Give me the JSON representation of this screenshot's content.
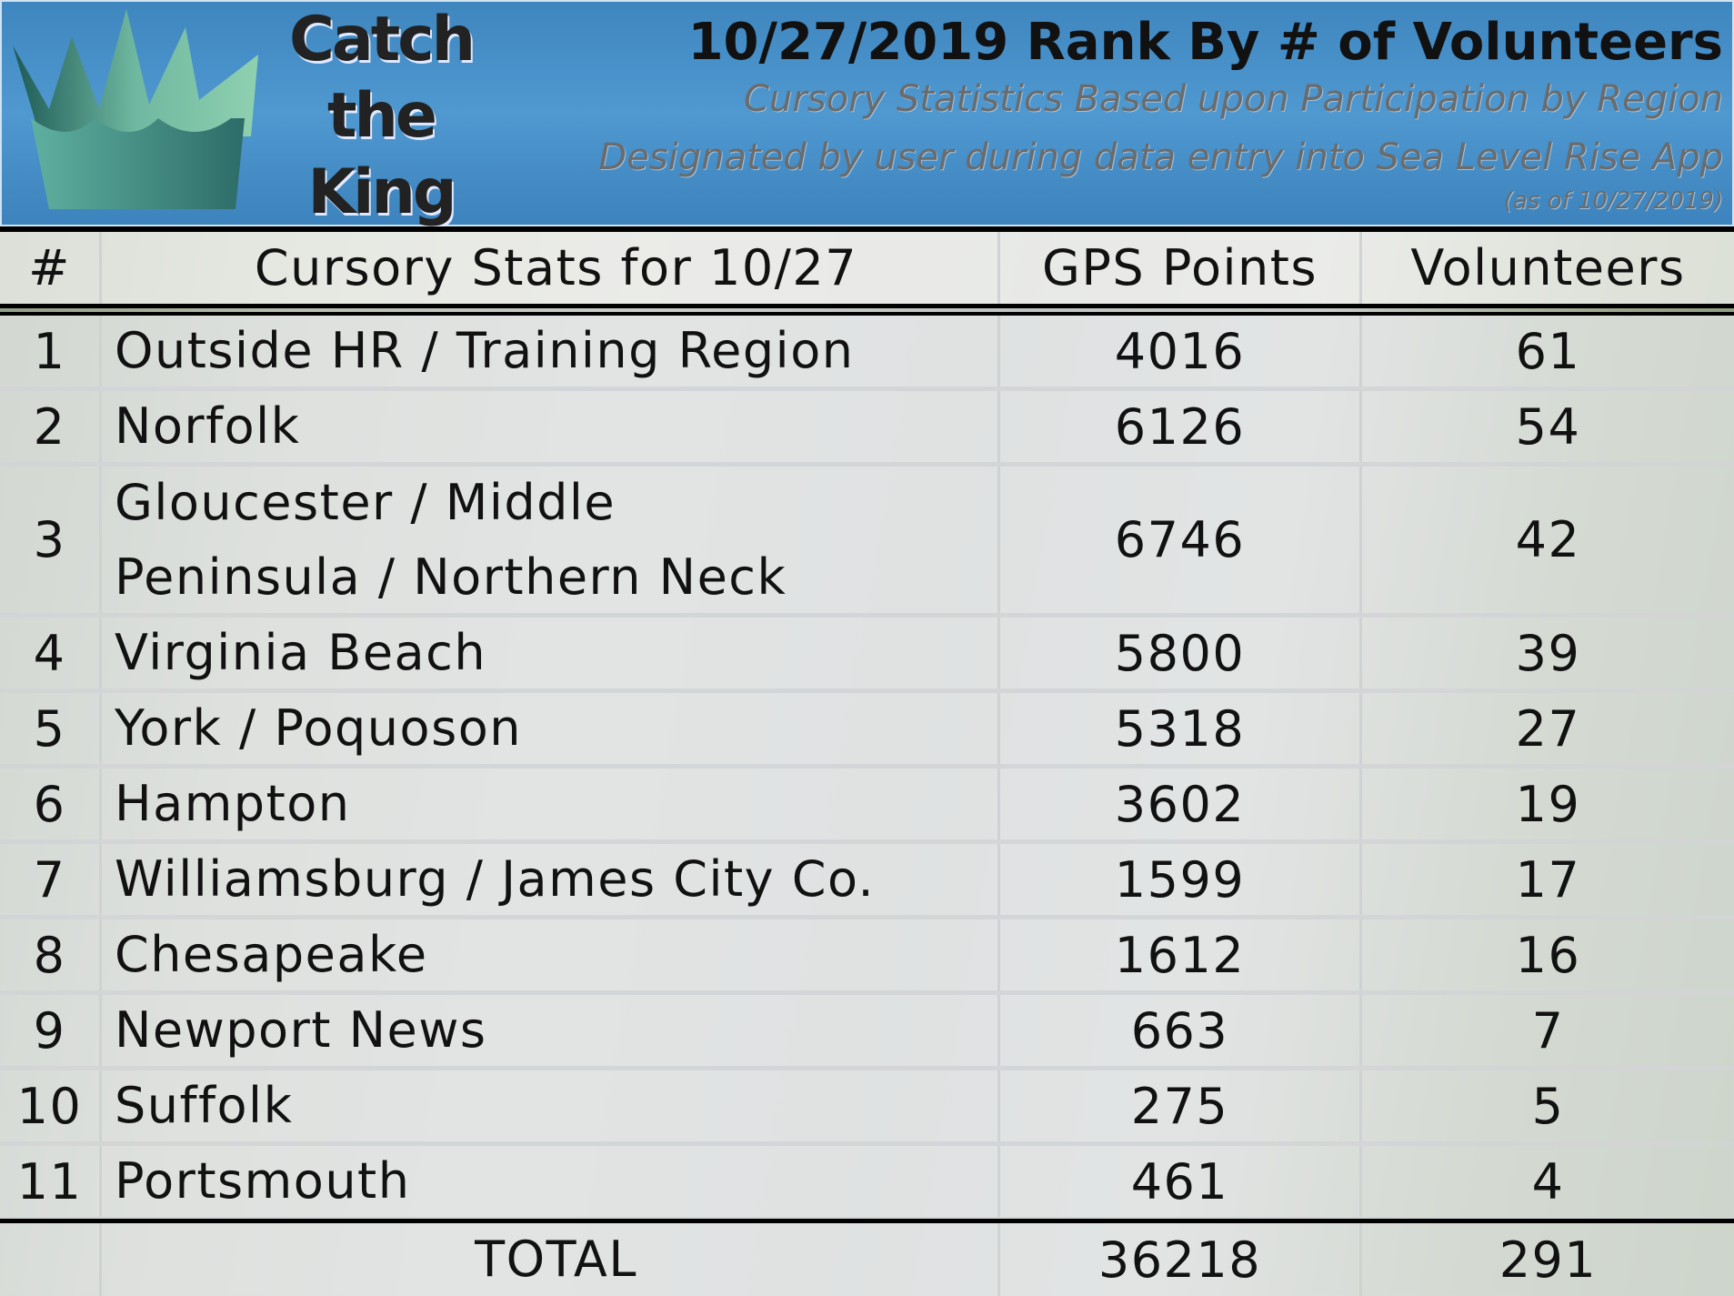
{
  "logo": {
    "line1": "Catch",
    "line2": "the",
    "line3": "King",
    "icon": "crown-icon"
  },
  "title": "10/27/2019 Rank By # of Volunteers",
  "subtitle1": "Cursory Statistics Based upon Participation by Region",
  "subtitle2": "Designated by user during data entry into Sea Level Rise App",
  "subtitle3": "(as of 10/27/2019)",
  "table": {
    "headers": [
      "#",
      "Cursory Stats for 10/27",
      "GPS Points",
      "Volunteers"
    ],
    "rows": [
      {
        "rank": "1",
        "region": "Outside HR / Training Region",
        "gps": "4016",
        "volunteers": "61"
      },
      {
        "rank": "2",
        "region": "Norfolk",
        "gps": "6126",
        "volunteers": "54"
      },
      {
        "rank": "3",
        "region": "Gloucester / Middle Peninsula / Northern Neck",
        "gps": "6746",
        "volunteers": "42"
      },
      {
        "rank": "4",
        "region": "Virginia Beach",
        "gps": "5800",
        "volunteers": "39"
      },
      {
        "rank": "5",
        "region": "York / Poquoson",
        "gps": "5318",
        "volunteers": "27"
      },
      {
        "rank": "6",
        "region": "Hampton",
        "gps": "3602",
        "volunteers": "19"
      },
      {
        "rank": "7",
        "region": "Williamsburg / James City Co.",
        "gps": "1599",
        "volunteers": "17"
      },
      {
        "rank": "8",
        "region": "Chesapeake",
        "gps": "1612",
        "volunteers": "16"
      },
      {
        "rank": "9",
        "region": "Newport News",
        "gps": "663",
        "volunteers": "7"
      },
      {
        "rank": "10",
        "region": "Suffolk",
        "gps": "275",
        "volunteers": "5"
      },
      {
        "rank": "11",
        "region": "Portsmouth",
        "gps": "461",
        "volunteers": "4"
      }
    ],
    "total": {
      "label": "TOTAL",
      "gps": "36218",
      "volunteers": "291"
    }
  },
  "colors": {
    "header_blue": "#4f98d0",
    "crown_teal": "#5aa99a"
  }
}
